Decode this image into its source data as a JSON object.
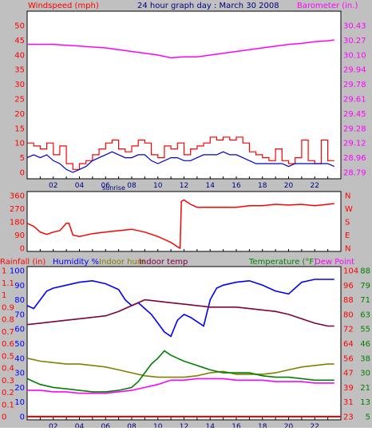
{
  "colors": {
    "background": "#C0C0C0",
    "plot_bg": "#FFFFFF",
    "wind_speed": "#FF0000",
    "wind_avg": "#0000CC",
    "barometer": "#FF00FF",
    "wind_dir": "#FF0000",
    "rainfall": "#FF0000",
    "humidity": "#0000FF",
    "indoor_hum": "#808000",
    "indoor_temp": "#800040",
    "temperature": "#008000",
    "dew_point": "#FF00FF",
    "axis_text_left": "#FF0000",
    "axis_text_right": "#FF00FF",
    "title_text": "#000080"
  },
  "title": "24 hour graph day : March 30 2008",
  "x_ticks": [
    "02",
    "04",
    "06",
    "08",
    "10",
    "12",
    "14",
    "16",
    "18",
    "20",
    "22"
  ],
  "sunrise_label": "sunrise",
  "chart_data": [
    {
      "type": "line",
      "name_left": "Windspeed (mph)",
      "name_right": "Barometer (in.)",
      "y_left_ticks": [
        "50",
        "45",
        "40",
        "35",
        "30",
        "25",
        "20",
        "15",
        "10",
        "5",
        "0"
      ],
      "y_left_range": [
        0,
        50
      ],
      "y_right_ticks": [
        "30.43",
        "30.27",
        "30.10",
        "29.94",
        "29.78",
        "29.61",
        "29.45",
        "29.28",
        "29.12",
        "28.96",
        "28.79"
      ],
      "y_right_range": [
        28.79,
        30.43
      ],
      "x_range_hours": [
        0,
        24
      ],
      "series": [
        {
          "name": "wind_gust",
          "x": [
            0,
            0.5,
            1,
            1.5,
            2,
            2.5,
            3,
            3.5,
            4,
            4.5,
            5,
            5.5,
            6,
            6.5,
            7,
            7.5,
            8,
            8.5,
            9,
            9.5,
            10,
            10.5,
            11,
            11.5,
            12,
            12.5,
            13,
            13.5,
            14,
            14.5,
            15,
            15.5,
            16,
            16.5,
            17,
            17.5,
            18,
            18.5,
            19,
            19.5,
            20,
            20.5,
            21,
            21.5,
            22,
            22.5,
            23,
            23.5
          ],
          "y": [
            10,
            9,
            8,
            10,
            6,
            9,
            3,
            1,
            3,
            4,
            6,
            8,
            10,
            11,
            8,
            7,
            9,
            11,
            10,
            6,
            5,
            9,
            8,
            10,
            6,
            8,
            9,
            10,
            12,
            11,
            12,
            11,
            12,
            10,
            7,
            6,
            5,
            4,
            8,
            4,
            3,
            5,
            11,
            4,
            3,
            11,
            4,
            4
          ]
        },
        {
          "name": "wind_avg",
          "x": [
            0,
            0.5,
            1,
            1.5,
            2,
            2.5,
            3,
            3.5,
            4,
            4.5,
            5,
            5.5,
            6,
            6.5,
            7,
            7.5,
            8,
            8.5,
            9,
            9.5,
            10,
            10.5,
            11,
            11.5,
            12,
            12.5,
            13,
            13.5,
            14,
            14.5,
            15,
            15.5,
            16,
            16.5,
            17,
            17.5,
            18,
            18.5,
            19,
            19.5,
            20,
            20.5,
            21,
            21.5,
            22,
            22.5,
            23,
            23.5
          ],
          "y": [
            5,
            6,
            5,
            6,
            4,
            3,
            1,
            0,
            1,
            2,
            4,
            5,
            6,
            7,
            6,
            5,
            5,
            6,
            6,
            4,
            3,
            4,
            5,
            5,
            4,
            4,
            5,
            6,
            6,
            6,
            7,
            6,
            6,
            5,
            4,
            3,
            3,
            3,
            3,
            3,
            2,
            3,
            3,
            3,
            3,
            3,
            3,
            2
          ]
        },
        {
          "name": "barometer",
          "x": [
            0,
            2,
            4,
            6,
            8,
            10,
            11,
            12,
            13,
            14,
            16,
            18,
            20,
            21,
            22,
            23,
            23.5
          ],
          "y": [
            30.22,
            30.22,
            30.2,
            30.18,
            30.14,
            30.1,
            30.07,
            30.08,
            30.08,
            30.1,
            30.14,
            30.18,
            30.22,
            30.23,
            30.25,
            30.26,
            30.27
          ]
        }
      ]
    },
    {
      "type": "scatter",
      "name": "Wind direction",
      "y_left_ticks": [
        "360",
        "270",
        "180",
        "90",
        "0"
      ],
      "y_left_range": [
        0,
        360
      ],
      "y_right_ticks": [
        "N",
        "W",
        "S",
        "E",
        "N"
      ],
      "series": [
        {
          "name": "wind_dir",
          "x": [
            0,
            0.5,
            1,
            1.5,
            2,
            2.5,
            3,
            3.2,
            3.5,
            4,
            5,
            6,
            7,
            8,
            9,
            10,
            10.5,
            11,
            11.5,
            11.7,
            11.8,
            12,
            12.5,
            13,
            14,
            15,
            16,
            17,
            18,
            19,
            20,
            21,
            22,
            23,
            23.5
          ],
          "y": [
            170,
            150,
            110,
            95,
            110,
            120,
            170,
            170,
            90,
            80,
            100,
            110,
            120,
            130,
            110,
            80,
            60,
            40,
            10,
            0,
            320,
            330,
            300,
            280,
            280,
            280,
            280,
            290,
            290,
            300,
            295,
            300,
            290,
            300,
            305
          ]
        }
      ]
    },
    {
      "type": "line",
      "name_left": "Rainfall (in)",
      "legend": [
        "Humidity %",
        "Indoor hum",
        "Indoor temp"
      ],
      "name_right_a": "Temperature (°F)",
      "name_right_b": "Dew Point",
      "y_rain_ticks": [
        "1",
        "1.1",
        "1",
        "0.9",
        "0.8",
        "0.7",
        "0.6",
        "0.5",
        "0.4",
        "0.3",
        "0.2",
        "0.1",
        "0"
      ],
      "y_hum_ticks": [
        "100",
        "90",
        "80",
        "70",
        "60",
        "50",
        "40",
        "30",
        "20",
        "10",
        "0"
      ],
      "y_temp_ticks": [
        "104",
        "96",
        "88",
        "80",
        "72",
        "64",
        "56",
        "47",
        "39",
        "31",
        "23"
      ],
      "y_dew_ticks": [
        "88",
        "79",
        "71",
        "63",
        "55",
        "46",
        "38",
        "30",
        "21",
        "13",
        "5"
      ],
      "y_hum_range": [
        0,
        100
      ],
      "series": [
        {
          "name": "humidity",
          "x": [
            0,
            0.5,
            1,
            1.5,
            2,
            3,
            4,
            5,
            6,
            7,
            7.5,
            8,
            8.5,
            9,
            9.5,
            10,
            10.5,
            11,
            11.5,
            12,
            12.5,
            13,
            13.5,
            14,
            14.5,
            15,
            16,
            17,
            18,
            19,
            20,
            20.5,
            21,
            22,
            23,
            23.5
          ],
          "y": [
            76,
            74,
            80,
            86,
            88,
            90,
            92,
            93,
            91,
            87,
            80,
            76,
            78,
            74,
            70,
            64,
            58,
            55,
            66,
            70,
            68,
            65,
            62,
            80,
            88,
            90,
            92,
            93,
            90,
            86,
            84,
            88,
            92,
            94,
            94,
            94
          ]
        },
        {
          "name": "indoor_hum",
          "x": [
            0,
            1,
            2,
            3,
            4,
            5,
            6,
            7,
            8,
            9,
            10,
            11,
            12,
            13,
            14,
            15,
            16,
            17,
            18,
            19,
            20,
            21,
            22,
            23,
            23.5
          ],
          "y": [
            40,
            38,
            37,
            36,
            36,
            35,
            34,
            32,
            30,
            28,
            27,
            27,
            27,
            28,
            30,
            31,
            29,
            29,
            29,
            30,
            32,
            34,
            35,
            36,
            36
          ]
        },
        {
          "name": "indoor_temp",
          "x": [
            0,
            1,
            2,
            3,
            4,
            5,
            6,
            7,
            8,
            9,
            10,
            11,
            12,
            13,
            14,
            15,
            16,
            17,
            18,
            19,
            20,
            21,
            22,
            23,
            23.5
          ],
          "y": [
            63,
            64,
            65,
            66,
            67,
            68,
            69,
            72,
            76,
            80,
            79,
            78,
            77,
            76,
            75,
            75,
            75,
            74,
            73,
            72,
            70,
            67,
            64,
            62,
            62
          ]
        },
        {
          "name": "temperature",
          "x": [
            0,
            0.5,
            1,
            2,
            3,
            4,
            5,
            6,
            7,
            8,
            8.5,
            9,
            9.5,
            10,
            10.5,
            11,
            11.5,
            12,
            13,
            14,
            15,
            16,
            17,
            18,
            19,
            20,
            21,
            22,
            23,
            23.5
          ],
          "y": [
            26,
            24,
            22,
            20,
            19,
            18,
            17,
            17,
            18,
            20,
            24,
            30,
            36,
            40,
            45,
            42,
            40,
            38,
            35,
            32,
            30,
            30,
            30,
            28,
            27,
            27,
            26,
            25,
            25,
            25
          ]
        },
        {
          "name": "dew_point",
          "x": [
            0,
            1,
            2,
            3,
            4,
            5,
            6,
            7,
            8,
            9,
            10,
            11,
            12,
            13,
            14,
            15,
            16,
            17,
            18,
            19,
            20,
            21,
            22,
            23,
            23.5
          ],
          "y": [
            18,
            18,
            17,
            17,
            16,
            16,
            16,
            17,
            18,
            20,
            22,
            25,
            25,
            26,
            26,
            26,
            25,
            25,
            25,
            24,
            24,
            24,
            23,
            23,
            23
          ]
        },
        {
          "name": "rainfall",
          "x": [
            0,
            24
          ],
          "y": [
            0,
            0
          ]
        }
      ]
    }
  ]
}
